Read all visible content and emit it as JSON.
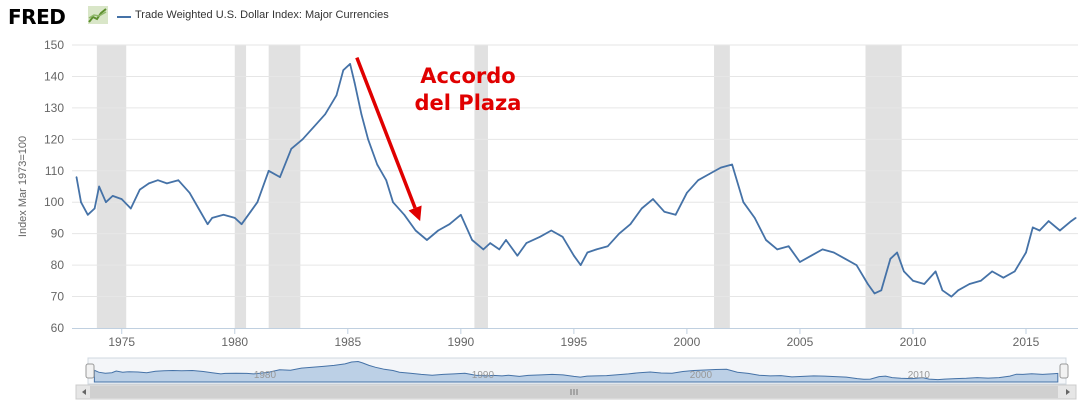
{
  "header": {
    "logo": "FRED",
    "logo_icon": "chart-line-icon",
    "series_name": "Trade Weighted U.S. Dollar Index: Major Currencies"
  },
  "chart_data": {
    "type": "line",
    "title": "Trade Weighted U.S. Dollar Index: Major Currencies",
    "ylabel": "Index Mar 1973=100",
    "xlabel": "",
    "ylim": [
      60,
      150
    ],
    "xlim": [
      1972.8,
      2017.3
    ],
    "yticks": [
      60,
      70,
      80,
      90,
      100,
      110,
      120,
      130,
      140,
      150
    ],
    "xticks": [
      1975,
      1980,
      1985,
      1990,
      1995,
      2000,
      2005,
      2010,
      2015
    ],
    "grid": true,
    "color": "#4572a7",
    "recessions": [
      [
        1973.9,
        1975.2
      ],
      [
        1980.0,
        1980.5
      ],
      [
        1981.5,
        1982.9
      ],
      [
        1990.6,
        1991.2
      ],
      [
        2001.2,
        2001.9
      ],
      [
        2007.9,
        2009.5
      ]
    ],
    "series": [
      {
        "name": "Trade Weighted U.S. Dollar Index: Major Currencies",
        "x": [
          1973.0,
          1973.2,
          1973.5,
          1973.8,
          1974.0,
          1974.3,
          1974.6,
          1975.0,
          1975.4,
          1975.8,
          1976.2,
          1976.6,
          1977.0,
          1977.5,
          1978.0,
          1978.4,
          1978.8,
          1979.0,
          1979.5,
          1980.0,
          1980.3,
          1980.7,
          1981.0,
          1981.5,
          1982.0,
          1982.5,
          1983.0,
          1983.5,
          1984.0,
          1984.5,
          1984.8,
          1985.1,
          1985.3,
          1985.6,
          1985.9,
          1986.3,
          1986.7,
          1987.0,
          1987.5,
          1988.0,
          1988.5,
          1989.0,
          1989.5,
          1990.0,
          1990.5,
          1991.0,
          1991.3,
          1991.7,
          1992.0,
          1992.5,
          1992.9,
          1993.5,
          1994.0,
          1994.5,
          1995.0,
          1995.3,
          1995.6,
          1996.0,
          1996.5,
          1997.0,
          1997.5,
          1998.0,
          1998.5,
          1999.0,
          1999.5,
          2000.0,
          2000.5,
          2001.0,
          2001.5,
          2002.0,
          2002.5,
          2003.0,
          2003.5,
          2004.0,
          2004.5,
          2005.0,
          2005.5,
          2006.0,
          2006.5,
          2007.0,
          2007.5,
          2008.0,
          2008.3,
          2008.6,
          2009.0,
          2009.3,
          2009.6,
          2010.0,
          2010.5,
          2011.0,
          2011.3,
          2011.7,
          2012.0,
          2012.5,
          2013.0,
          2013.5,
          2014.0,
          2014.5,
          2015.0,
          2015.3,
          2015.6,
          2016.0,
          2016.5,
          2017.0,
          2017.2
        ],
        "values": [
          108,
          100,
          96,
          98,
          105,
          100,
          102,
          101,
          98,
          104,
          106,
          107,
          106,
          107,
          103,
          98,
          93,
          95,
          96,
          95,
          93,
          97,
          100,
          110,
          108,
          117,
          120,
          124,
          128,
          134,
          142,
          144,
          138,
          128,
          120,
          112,
          107,
          100,
          96,
          91,
          88,
          91,
          93,
          96,
          88,
          85,
          87,
          85,
          88,
          83,
          87,
          89,
          91,
          89,
          83,
          80,
          84,
          85,
          86,
          90,
          93,
          98,
          101,
          97,
          96,
          103,
          107,
          109,
          111,
          112,
          100,
          95,
          88,
          85,
          86,
          81,
          83,
          85,
          84,
          82,
          80,
          74,
          71,
          72,
          82,
          84,
          78,
          75,
          74,
          78,
          72,
          70,
          72,
          74,
          75,
          78,
          76,
          78,
          84,
          92,
          91,
          94,
          91,
          94,
          95
        ]
      }
    ]
  },
  "annotation": {
    "line1": "Accordo",
    "line2": "del Plaza",
    "color": "#e00000",
    "from_x": 1985.4,
    "from_y": 146,
    "to_x": 1988.2,
    "to_y": 94
  },
  "navigator": {
    "ticks": [
      "1980",
      "1990",
      "2000",
      "2010"
    ],
    "tick_years": [
      1980,
      1990,
      2000,
      2010
    ]
  }
}
